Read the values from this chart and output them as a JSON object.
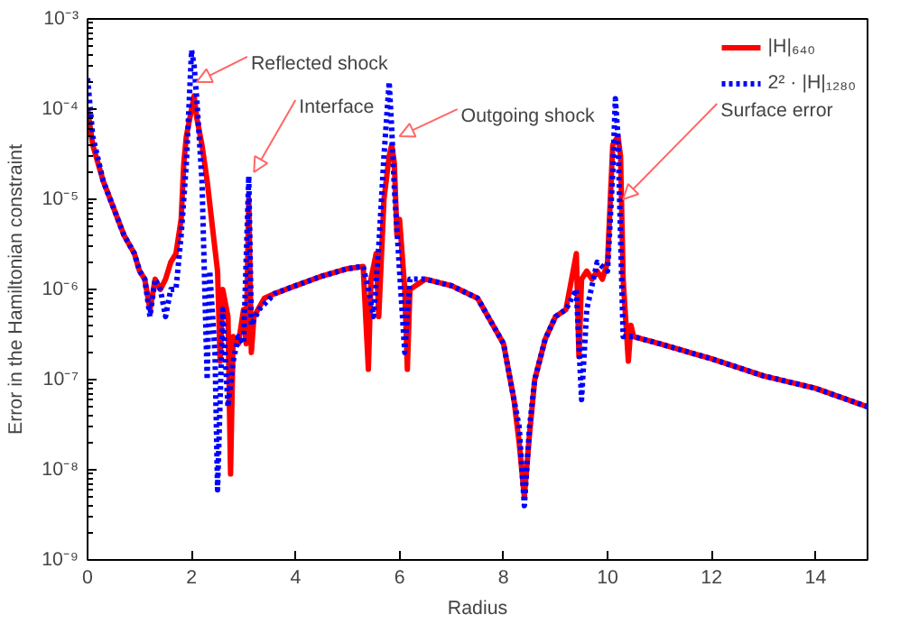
{
  "chart_data": {
    "type": "line",
    "xlabel": "Radius",
    "ylabel": "Error in the Hamiltonian constraint",
    "log": "y",
    "grid": false,
    "legend": "top right",
    "marker": "none",
    "xlim": [
      0,
      15
    ],
    "xticks": [
      0,
      2,
      4,
      6,
      8,
      10,
      12,
      14
    ],
    "ylim": [
      1e-09,
      0.001
    ],
    "yticks": [
      {
        "value": 1e-09,
        "label": "10⁻⁹"
      },
      {
        "value": 1e-08,
        "label": "10⁻⁸"
      },
      {
        "value": 1e-07,
        "label": "10⁻⁷"
      },
      {
        "value": 1e-06,
        "label": "10⁻⁶"
      },
      {
        "value": 1e-05,
        "label": "10⁻⁵"
      },
      {
        "value": 0.0001,
        "label": "10⁻⁴"
      },
      {
        "value": 0.001,
        "label": "10⁻³"
      }
    ],
    "annotations": [
      {
        "text": "Reflected shock",
        "x": 2.1,
        "y": 0.0002
      },
      {
        "text": "Interface",
        "x": 3.2,
        "y": 2e-05
      },
      {
        "text": "Outgoing shock",
        "x": 6.0,
        "y": 5e-05
      },
      {
        "text": "Surface error",
        "x": 10.3,
        "y": 1e-05
      }
    ],
    "series": [
      {
        "name": "|H|₆₄₀",
        "color": "#ff0000",
        "line_style": "solid",
        "x": [
          0,
          0.1,
          0.3,
          0.5,
          0.7,
          0.9,
          1.0,
          1.1,
          1.2,
          1.3,
          1.4,
          1.5,
          1.6,
          1.7,
          1.8,
          1.85,
          1.9,
          2.0,
          2.05,
          2.1,
          2.2,
          2.3,
          2.4,
          2.5,
          2.55,
          2.6,
          2.7,
          2.75,
          2.8,
          2.9,
          3.0,
          3.05,
          3.1,
          3.15,
          3.2,
          3.4,
          3.6,
          4.0,
          4.5,
          5.0,
          5.3,
          5.4,
          5.45,
          5.55,
          5.6,
          5.7,
          5.8,
          5.85,
          5.9,
          5.95,
          6.0,
          6.1,
          6.15,
          6.2,
          6.5,
          7.0,
          7.5,
          8.0,
          8.2,
          8.3,
          8.4,
          8.5,
          8.6,
          8.8,
          9.0,
          9.2,
          9.4,
          9.45,
          9.5,
          9.6,
          9.7,
          9.8,
          9.9,
          10.0,
          10.1,
          10.2,
          10.25,
          10.3,
          10.4,
          10.45,
          10.5,
          11,
          12,
          13,
          14,
          15
        ],
        "values": [
          0.0001,
          4e-05,
          1.6e-05,
          8e-06,
          4e-06,
          2.5e-06,
          1.6e-06,
          1.3e-06,
          6e-07,
          1.3e-06,
          1e-06,
          1.3e-06,
          2e-06,
          2.5e-06,
          6e-06,
          2.5e-05,
          5e-05,
          0.0001,
          0.00014,
          8e-05,
          4e-05,
          1.6e-05,
          5e-06,
          1.6e-06,
          1.6e-07,
          1e-06,
          5e-07,
          9e-09,
          3e-07,
          2.5e-07,
          6e-07,
          2.5e-07,
          1e-05,
          2e-07,
          5e-07,
          8e-07,
          9e-07,
          1.1e-06,
          1.4e-06,
          1.7e-06,
          1.8e-06,
          1.3e-07,
          1.3e-06,
          2.5e-06,
          5e-07,
          1e-05,
          3e-05,
          4e-05,
          2.5e-05,
          4e-06,
          6e-06,
          1e-06,
          1.3e-07,
          1e-06,
          1.3e-06,
          1.1e-06,
          8e-07,
          2.5e-07,
          6e-08,
          2e-08,
          5e-09,
          2.5e-08,
          1e-07,
          2.8e-07,
          5e-07,
          6e-07,
          2.5e-06,
          1.8e-07,
          1.3e-06,
          1.6e-06,
          1.3e-06,
          1.6e-06,
          1.3e-06,
          2e-06,
          4e-05,
          5e-05,
          3e-05,
          1.3e-06,
          1.6e-07,
          4e-07,
          3e-07,
          2.5e-07,
          1.7e-07,
          1.1e-07,
          8e-08,
          5e-08
        ]
      },
      {
        "name": "2² · |H|₁₂₈₀",
        "color": "#0000ff",
        "line_style": "dotted",
        "x": [
          0,
          0.1,
          0.3,
          0.5,
          0.7,
          0.9,
          1.0,
          1.1,
          1.2,
          1.3,
          1.4,
          1.5,
          1.6,
          1.7,
          1.8,
          1.9,
          2.0,
          2.05,
          2.1,
          2.2,
          2.3,
          2.35,
          2.45,
          2.5,
          2.6,
          2.7,
          2.8,
          2.9,
          3.0,
          3.1,
          3.15,
          3.3,
          3.6,
          4.0,
          4.5,
          5.0,
          5.3,
          5.4,
          5.5,
          5.6,
          5.7,
          5.8,
          5.85,
          5.9,
          6.0,
          6.1,
          6.2,
          6.5,
          7.0,
          7.5,
          8.0,
          8.2,
          8.3,
          8.4,
          8.5,
          8.6,
          8.8,
          9.0,
          9.2,
          9.4,
          9.5,
          9.6,
          9.8,
          10.0,
          10.1,
          10.15,
          10.2,
          10.3,
          10.4,
          10.5,
          11,
          12,
          13,
          14,
          15
        ],
        "values": [
          0.00022,
          5e-05,
          1.6e-05,
          8e-06,
          4e-06,
          2.5e-06,
          1.6e-06,
          1.3e-06,
          5e-07,
          1.3e-06,
          1e-06,
          5e-07,
          1e-06,
          1e-06,
          4e-06,
          2.5e-05,
          0.00045,
          0.0003,
          0.00013,
          1.6e-05,
          1e-07,
          1.6e-06,
          2e-07,
          6e-09,
          6e-07,
          5e-08,
          1.6e-07,
          3e-07,
          2.5e-07,
          1.8e-05,
          4e-07,
          6e-07,
          9e-07,
          1.1e-06,
          1.4e-06,
          1.7e-06,
          1.8e-06,
          1e-06,
          5e-07,
          3e-06,
          3e-05,
          0.0002,
          6e-05,
          1.3e-05,
          1.6e-06,
          2e-07,
          1.3e-06,
          1.3e-06,
          1.1e-06,
          8e-07,
          2.5e-07,
          6e-08,
          3e-08,
          4e-09,
          3e-08,
          1e-07,
          2.8e-07,
          5e-07,
          6e-07,
          1e-06,
          6e-08,
          6e-07,
          2e-06,
          1.6e-06,
          2e-05,
          0.00013,
          5e-05,
          3e-07,
          3e-07,
          3e-07,
          2.5e-07,
          1.7e-07,
          1.1e-07,
          8e-08,
          5e-08
        ]
      }
    ]
  }
}
